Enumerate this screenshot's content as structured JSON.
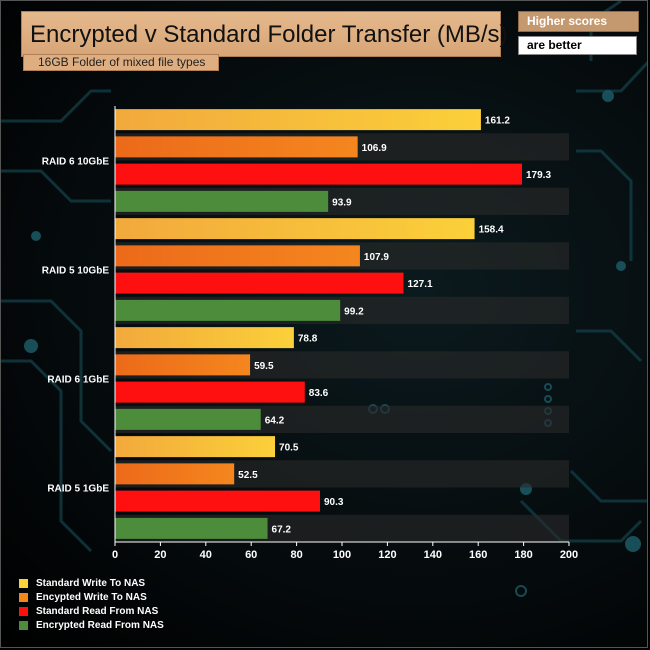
{
  "header": {
    "title": "Encrypted v Standard Folder Transfer (MB/s)",
    "subtitle": "16GB Folder of mixed file types",
    "note_top": "Higher scores",
    "note_bottom": "are better"
  },
  "chart_data": {
    "type": "bar",
    "orientation": "horizontal",
    "title": "Encrypted v Standard Folder Transfer (MB/s)",
    "subtitle": "16GB Folder of mixed file types",
    "categories": [
      "RAID 6 10GbE",
      "RAID 5 10GbE",
      "RAID 6 1GbE",
      "RAID 5 1GbE"
    ],
    "series": [
      {
        "name": "Standard Write To NAS",
        "color": "#fbd03a",
        "values": [
          161.2,
          158.4,
          78.8,
          70.5
        ]
      },
      {
        "name": "Encypted Write To NAS",
        "color": "#f5861e",
        "values": [
          106.9,
          107.9,
          59.5,
          52.5
        ]
      },
      {
        "name": "Standard Read From NAS",
        "color": "#ff1010",
        "values": [
          179.3,
          127.1,
          83.6,
          90.3
        ]
      },
      {
        "name": "Encrypted Read From NAS",
        "color": "#4c8c3a",
        "values": [
          93.9,
          99.2,
          64.2,
          67.2
        ]
      }
    ],
    "xlim": [
      0,
      200
    ],
    "ticks": [
      0,
      20,
      40,
      60,
      80,
      100,
      120,
      140,
      160,
      180,
      200
    ],
    "tick_labels": [
      "0",
      "20",
      "40",
      "60",
      "80",
      "100",
      "120",
      "140",
      "160",
      "180",
      "200"
    ],
    "data_labels": [
      [
        "161.2",
        "158.4",
        "78.8",
        "70.5"
      ],
      [
        "106.9",
        "107.9",
        "59.5",
        "52.5"
      ],
      [
        "179.3",
        "127.1",
        "83.6",
        "90.3"
      ],
      [
        "93.9",
        "99.2",
        "64.2",
        "67.2"
      ]
    ],
    "legend": "bottom-left",
    "grid": false
  }
}
